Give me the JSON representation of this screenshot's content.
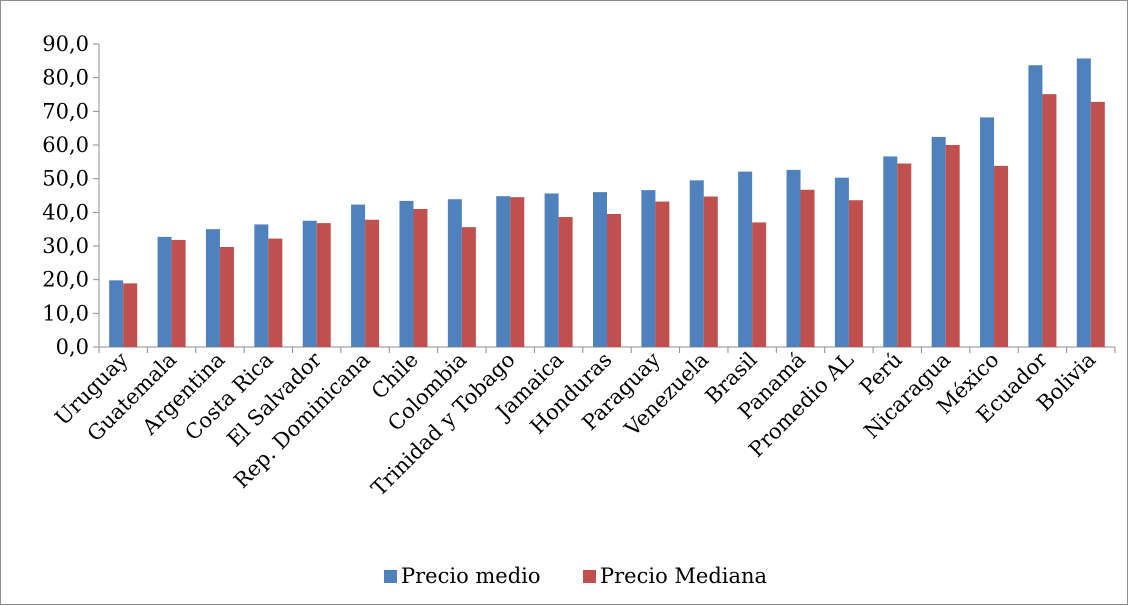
{
  "chart_data": {
    "type": "bar",
    "categories": [
      "Uruguay",
      "Guatemala",
      "Argentina",
      "Costa Rica",
      "El Salvador",
      "Rep. Dominicana",
      "Chile",
      "Colombia",
      "Trinidad y Tobago",
      "Jamaica",
      "Honduras",
      "Paraguay",
      "Venezuela",
      "Brasil",
      "Panamá",
      "Promedio AL",
      "Perú",
      "Nicaragua",
      "México",
      "Ecuador",
      "Bolivia"
    ],
    "series": [
      {
        "name": "Precio medio",
        "color": "#4f81bd",
        "values": [
          19.8,
          32.7,
          35.0,
          36.4,
          37.5,
          42.3,
          43.4,
          43.9,
          44.8,
          45.6,
          46.0,
          46.6,
          49.5,
          52.1,
          52.6,
          50.3,
          56.6,
          62.4,
          68.2,
          83.7,
          85.7
        ]
      },
      {
        "name": "Precio Mediana",
        "color": "#c0504d",
        "values": [
          18.9,
          31.8,
          29.7,
          32.2,
          36.8,
          37.8,
          41.0,
          35.6,
          44.5,
          38.6,
          39.5,
          43.2,
          44.7,
          37.0,
          46.7,
          43.6,
          54.5,
          60.0,
          53.8,
          75.1,
          72.8
        ]
      }
    ],
    "ylim": [
      0,
      90
    ],
    "yticks": [
      "0,0",
      "10,0",
      "20,0",
      "30,0",
      "40,0",
      "50,0",
      "60,0",
      "70,0",
      "80,0",
      "90,0"
    ],
    "grid": false,
    "legend_position": "bottom"
  }
}
